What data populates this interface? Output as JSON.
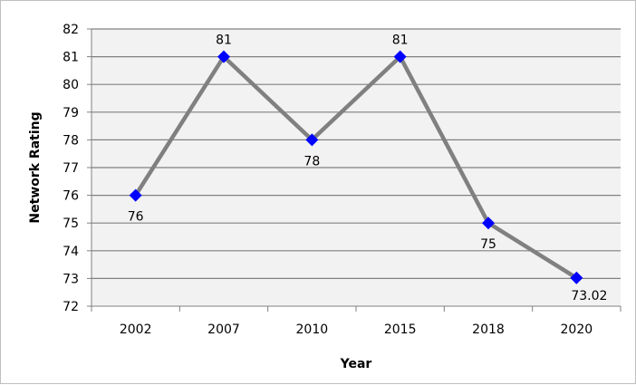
{
  "chart_data": {
    "type": "line",
    "title": "",
    "xlabel": "Year",
    "ylabel": "Network Rating",
    "categories": [
      "2002",
      "2007",
      "2010",
      "2015",
      "2018",
      "2020"
    ],
    "series": [
      {
        "values": [
          76,
          81,
          78,
          81,
          75,
          73.02
        ],
        "data_labels": [
          "76",
          "81",
          "78",
          "81",
          "75",
          "73.02"
        ],
        "line_color": "#808080",
        "marker": "diamond",
        "marker_color": "#0000ff"
      }
    ],
    "ylim": [
      72,
      82
    ],
    "y_ticks": [
      72,
      73,
      74,
      75,
      76,
      77,
      78,
      79,
      80,
      81,
      82
    ],
    "grid": true,
    "plot_background": "#f2f2f2",
    "gridline_color": "#808080",
    "legend": "none"
  }
}
